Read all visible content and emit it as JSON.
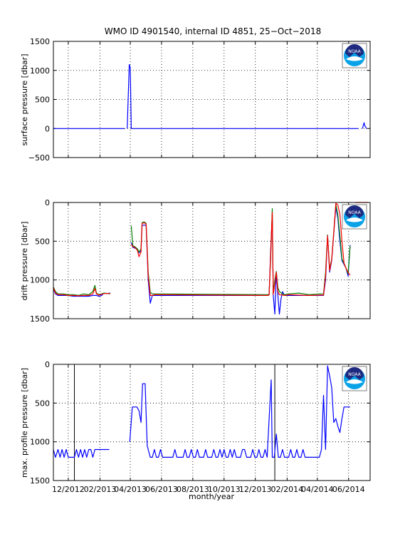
{
  "figure": {
    "title": "WMO ID 4901540, internal ID 4851, 25−Oct−2018",
    "xlabel": "month/year"
  },
  "logo": {
    "text": "NOAA",
    "icon": "noaa-logo-icon",
    "colors": [
      "#1d2a80",
      "#0aa3e8",
      "#ffffff"
    ]
  },
  "chart_data": [
    {
      "type": "line",
      "id": "surface",
      "ylabel": "surface pressure [dbar]",
      "ylim": [
        -500,
        1500
      ],
      "y_reversed": false,
      "yticks": [
        -500,
        0,
        500,
        1000,
        1500
      ],
      "ytick_labels": [
        "−500",
        "0",
        "500",
        "1000",
        "1500"
      ],
      "xlim": [
        15281,
        15899
      ],
      "grid": true,
      "series": [
        {
          "color": "#0000ff",
          "segments": [
            {
              "x": [
                15281,
                15420
              ],
              "y": [
                0,
                0
              ]
            },
            {
              "x": [
                15425,
                15429,
                15431,
                15433,
                15436,
                15452,
                15876
              ],
              "y": [
                0,
                1100,
                1050,
                0,
                0,
                0,
                0
              ]
            },
            {
              "x": [
                15884,
                15887,
                15889,
                15892
              ],
              "y": [
                0,
                100,
                40,
                0
              ]
            }
          ]
        }
      ]
    },
    {
      "type": "line",
      "id": "drift",
      "ylabel": "drift pressure [dbar]",
      "ylim": [
        0,
        1500
      ],
      "y_reversed": true,
      "yticks": [
        0,
        500,
        1000,
        1500
      ],
      "ytick_labels": [
        "0",
        "500",
        "1000",
        "1500"
      ],
      "xlim": [
        15281,
        15899
      ],
      "grid": true,
      "series": [
        {
          "color": "#0000ff",
          "segments": [
            {
              "x": [
                15281,
                15285,
                15290,
                15300,
                15310,
                15320,
                15330,
                15340,
                15350,
                15358,
                15360,
                15365,
                15370,
                15375,
                15380,
                15385,
                15392
              ],
              "y": [
                1120,
                1180,
                1200,
                1200,
                1200,
                1210,
                1210,
                1210,
                1210,
                1200,
                1200,
                1200,
                1210,
                1200,
                1170,
                1175,
                1170
              ]
            },
            {
              "x": [
                15433,
                15436,
                15440,
                15445,
                15448,
                15452,
                15454,
                15458,
                15462,
                15466,
                15470,
                15474,
                15478,
                15700,
                15702,
                15705,
                15708,
                15710,
                15713,
                15716,
                15719,
                15722,
                15725,
                15728,
                15732,
                15736,
                15740,
                15745,
                15750,
                15760,
                15770,
                15780,
                15790,
                15800,
                15808,
                15812,
                15816,
                15820,
                15824,
                15828,
                15832,
                15836,
                15840,
                15844,
                15848,
                15852,
                15856,
                15860
              ],
              "y": [
                520,
                580,
                590,
                600,
                650,
                620,
                300,
                290,
                300,
                1000,
                1300,
                1200,
                1200,
                1200,
                1190,
                600,
                160,
                1200,
                1440,
                900,
                1200,
                1440,
                1250,
                1150,
                1200,
                1200,
                1200,
                1200,
                1200,
                1200,
                1200,
                1200,
                1200,
                1200,
                1200,
                1000,
                420,
                900,
                750,
                400,
                60,
                200,
                500,
                750,
                800,
                850,
                950,
                550
              ]
            }
          ]
        },
        {
          "color": "#008000",
          "segments": [
            {
              "x": [
                15281,
                15285,
                15290,
                15300,
                15310,
                15320,
                15330,
                15340,
                15350,
                15358,
                15362,
                15365,
                15370,
                15380,
                15392
              ],
              "y": [
                1090,
                1150,
                1180,
                1180,
                1190,
                1190,
                1200,
                1180,
                1190,
                1150,
                1070,
                1170,
                1190,
                1170,
                1180
              ]
            },
            {
              "x": [
                15433,
                15436,
                15440,
                15445,
                15448,
                15452,
                15454,
                15458,
                15462,
                15466,
                15470,
                15474,
                15478,
                15700,
                15702,
                15705,
                15708,
                15710,
                15713,
                15716,
                15719,
                15722,
                15728,
                15732,
                15740,
                15760,
                15780,
                15800,
                15808,
                15812,
                15816,
                15820,
                15824,
                15828,
                15832,
                15836,
                15840,
                15844,
                15848,
                15852,
                15856,
                15860
              ],
              "y": [
                300,
                560,
                570,
                600,
                640,
                600,
                260,
                250,
                270,
                900,
                1160,
                1180,
                1180,
                1190,
                1180,
                700,
                80,
                1180,
                1000,
                890,
                1100,
                1150,
                1180,
                1190,
                1180,
                1170,
                1190,
                1180,
                1180,
                900,
                420,
                860,
                730,
                380,
                20,
                160,
                430,
                730,
                790,
                850,
                920,
                560
              ]
            }
          ]
        },
        {
          "color": "#ff0000",
          "segments": [
            {
              "x": [
                15281,
                15285,
                15290,
                15300,
                15310,
                15320,
                15330,
                15340,
                15350,
                15358,
                15362,
                15365,
                15370,
                15380,
                15392
              ],
              "y": [
                1100,
                1170,
                1190,
                1190,
                1200,
                1200,
                1205,
                1200,
                1200,
                1180,
                1110,
                1180,
                1195,
                1175,
                1175
              ]
            },
            {
              "x": [
                15433,
                15436,
                15440,
                15445,
                15448,
                15452,
                15454,
                15458,
                15462,
                15466,
                15470,
                15474,
                15478,
                15700,
                15702,
                15705,
                15708,
                15710,
                15713,
                15716,
                15719,
                15722,
                15728,
                15732,
                15740,
                15760,
                15780,
                15800,
                15808,
                15812,
                15816,
                15820,
                15824,
                15828,
                15832,
                15836,
                15840,
                15844,
                15848,
                15852,
                15856,
                15860
              ],
              "y": [
                540,
                570,
                580,
                620,
                700,
                640,
                270,
                260,
                280,
                950,
                1200,
                1200,
                1190,
                1200,
                1190,
                650,
                130,
                1190,
                1050,
                900,
                1150,
                1190,
                1195,
                1200,
                1190,
                1195,
                1200,
                1195,
                1195,
                950,
                430,
                880,
                740,
                390,
                10,
                30,
                150,
                500,
                780,
                850,
                900,
                940
              ]
            },
            {
              "x": [
                15870,
                15895
              ],
              "y": [
                0,
                0
              ]
            }
          ]
        }
      ]
    },
    {
      "type": "line",
      "id": "maxprofile",
      "ylabel": "max. profile pressure [dbar]",
      "ylim": [
        0,
        1500
      ],
      "y_reversed": true,
      "yticks": [
        0,
        500,
        1000,
        1500
      ],
      "ytick_labels": [
        "0",
        "500",
        "1000",
        "1500"
      ],
      "xlim": [
        15281,
        15899
      ],
      "grid": true,
      "vlines": [
        15322,
        15713
      ],
      "x_ticks": [
        15310,
        15372,
        15431,
        15492,
        15553,
        15614,
        15675,
        15737,
        15796,
        15857
      ],
      "x_tick_labels": [
        "12/2012",
        "02/2013",
        "04/2013",
        "06/2013",
        "08/2013",
        "10/2013",
        "12/2013",
        "02/2014",
        "04/2014",
        "06/2014"
      ],
      "series": [
        {
          "color": "#0000ff",
          "segments": [
            {
              "x": [
                15281,
                15285,
                15290,
                15294,
                15298,
                15302,
                15306,
                15310,
                15314,
                15318,
                15322,
                15326,
                15330,
                15334,
                15338,
                15342,
                15346,
                15350,
                15354,
                15358,
                15362,
                15366,
                15370,
                15374,
                15380,
                15390
              ],
              "y": [
                1100,
                1200,
                1100,
                1200,
                1100,
                1200,
                1100,
                1200,
                1200,
                1200,
                1200,
                1100,
                1200,
                1100,
                1200,
                1100,
                1200,
                1100,
                1100,
                1200,
                1100,
                1100,
                1100,
                1100,
                1100,
                1100
              ]
            },
            {
              "x": [
                15430,
                15435,
                15440,
                15444,
                15448,
                15452,
                15455,
                15460,
                15464,
                15470,
                15474,
                15478,
                15482,
                15486,
                15490,
                15494,
                15498,
                15502,
                15506,
                15510,
                15514,
                15518,
                15522,
                15526,
                15530,
                15534,
                15538,
                15542,
                15546,
                15550,
                15554,
                15558,
                15562,
                15566,
                15570,
                15574,
                15578,
                15582,
                15586,
                15590,
                15594,
                15598,
                15602,
                15606,
                15610,
                15614,
                15618,
                15622,
                15626,
                15630,
                15634,
                15638,
                15642,
                15646,
                15650,
                15654,
                15658,
                15662,
                15666,
                15670,
                15674,
                15678,
                15682,
                15686,
                15690,
                15694,
                15698,
                15702,
                15706,
                15708,
                15712,
                15716,
                15720,
                15724,
                15728,
                15732,
                15736,
                15740,
                15744,
                15748,
                15752,
                15756,
                15760,
                15764,
                15768,
                15772,
                15776,
                15780,
                15784,
                15788,
                15792,
                15796,
                15800,
                15804,
                15808,
                15812,
                15816,
                15820,
                15824,
                15828,
                15832,
                15836,
                15840,
                15844,
                15848,
                15852,
                15856,
                15860
              ],
              "y": [
                1000,
                550,
                550,
                550,
                600,
                750,
                250,
                250,
                1050,
                1200,
                1200,
                1100,
                1200,
                1200,
                1100,
                1200,
                1200,
                1200,
                1200,
                1200,
                1200,
                1100,
                1200,
                1200,
                1200,
                1200,
                1100,
                1200,
                1200,
                1100,
                1200,
                1200,
                1100,
                1200,
                1200,
                1200,
                1100,
                1200,
                1200,
                1200,
                1100,
                1200,
                1200,
                1100,
                1200,
                1100,
                1200,
                1200,
                1100,
                1200,
                1100,
                1200,
                1200,
                1200,
                1100,
                1100,
                1200,
                1200,
                1200,
                1100,
                1200,
                1200,
                1100,
                1200,
                1200,
                1100,
                1200,
                700,
                200,
                1200,
                1200,
                900,
                1200,
                1200,
                1100,
                1200,
                1200,
                1200,
                1100,
                1200,
                1200,
                1100,
                1200,
                1200,
                1100,
                1200,
                1200,
                1200,
                1200,
                1200,
                1200,
                1200,
                1200,
                1100,
                400,
                1100,
                20,
                150,
                300,
                750,
                700,
                800,
                880,
                700,
                550,
                550,
                550,
                550
              ]
            }
          ]
        }
      ]
    }
  ]
}
